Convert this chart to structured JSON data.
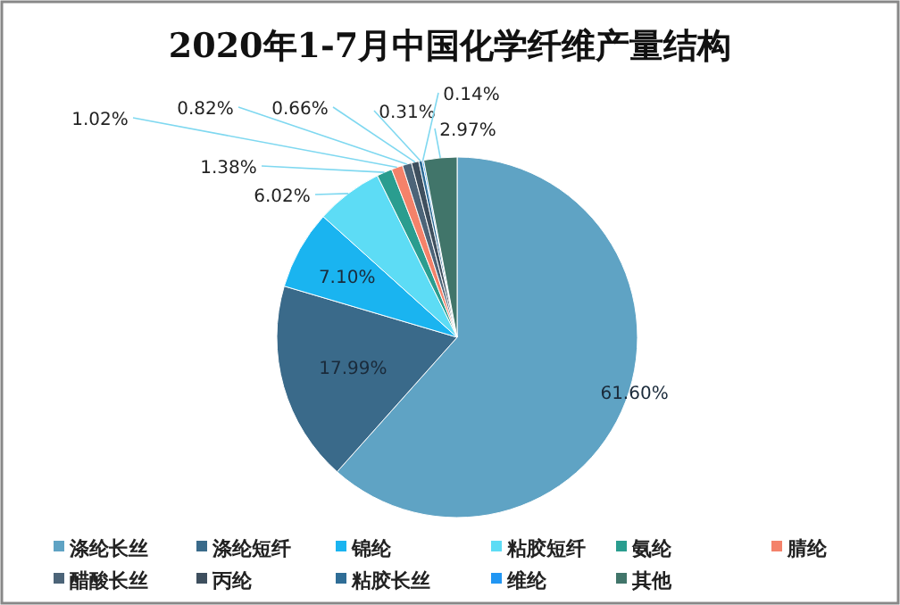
{
  "chart_data": {
    "type": "pie",
    "title": "2020年1-7月中国化学纤维产量结构",
    "categories": [
      "涤纶长丝",
      "涤纶短纤",
      "锦纶",
      "粘胶短纤",
      "氨纶",
      "腈纶",
      "醋酸长丝",
      "丙纶",
      "粘胶长丝",
      "维纶",
      "其他"
    ],
    "values": [
      61.6,
      17.99,
      7.1,
      6.02,
      1.38,
      1.02,
      0.82,
      0.66,
      0.31,
      0.14,
      2.97
    ],
    "value_labels": [
      "61.60%",
      "17.99%",
      "7.10%",
      "6.02%",
      "1.38%",
      "1.02%",
      "0.82%",
      "0.66%",
      "0.31%",
      "0.14%",
      "2.97%"
    ],
    "colors": [
      "#5fa3c4",
      "#3a6a8a",
      "#1ab4f0",
      "#5ddcf5",
      "#2a9d8f",
      "#f4826a",
      "#4c6478",
      "#3e4f5e",
      "#2f6d96",
      "#2196f3",
      "#41756a"
    ],
    "legend": "bottom"
  }
}
